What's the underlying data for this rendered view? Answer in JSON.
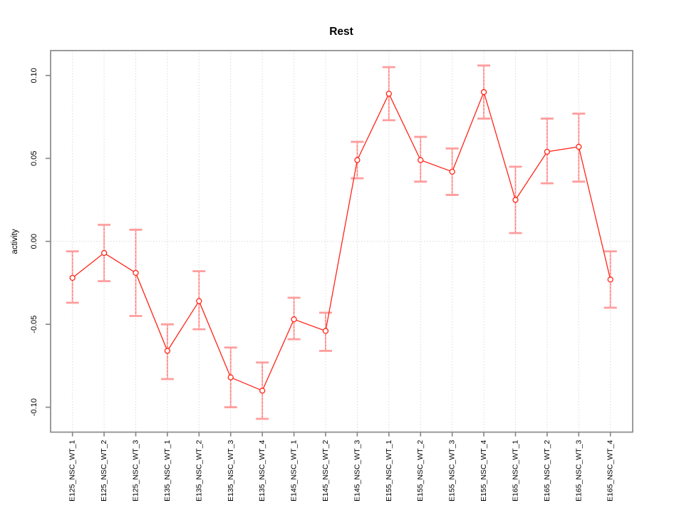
{
  "chart_data": {
    "type": "line",
    "title": "Rest",
    "xlabel": "",
    "ylabel": "activity",
    "legend": "none",
    "marker": "open-circle",
    "error_bars": true,
    "categories": [
      "E125_NSC_WT_1",
      "E125_NSC_WT_2",
      "E125_NSC_WT_3",
      "E135_NSC_WT_1",
      "E135_NSC_WT_2",
      "E135_NSC_WT_3",
      "E135_NSC_WT_4",
      "E145_NSC_WT_1",
      "E145_NSC_WT_2",
      "E145_NSC_WT_3",
      "E155_NSC_WT_1",
      "E155_NSC_WT_2",
      "E155_NSC_WT_3",
      "E155_NSC_WT_4",
      "E165_NSC_WT_1",
      "E165_NSC_WT_2",
      "E165_NSC_WT_3",
      "E165_NSC_WT_4"
    ],
    "series": [
      {
        "name": "activity",
        "values": [
          -0.022,
          -0.007,
          -0.019,
          -0.066,
          -0.036,
          -0.082,
          -0.09,
          -0.047,
          -0.054,
          0.049,
          0.089,
          0.049,
          0.042,
          0.09,
          0.025,
          0.054,
          0.057,
          -0.023
        ],
        "upper": [
          -0.006,
          0.01,
          0.007,
          -0.05,
          -0.018,
          -0.064,
          -0.073,
          -0.034,
          -0.043,
          0.06,
          0.105,
          0.063,
          0.056,
          0.106,
          0.045,
          0.074,
          0.077,
          -0.006
        ],
        "lower": [
          -0.037,
          -0.024,
          -0.045,
          -0.083,
          -0.053,
          -0.1,
          -0.107,
          -0.059,
          -0.066,
          0.038,
          0.073,
          0.036,
          0.028,
          0.074,
          0.005,
          0.035,
          0.036,
          -0.04
        ]
      }
    ],
    "ylim": [
      -0.115,
      0.115
    ],
    "ytick_values": [
      0.1,
      0.05,
      0.0,
      -0.05,
      -0.1
    ],
    "ytick_labels": [
      "0.10",
      "0.05",
      "0.00",
      "-0.05",
      "-0.10"
    ],
    "grid": {
      "vertical_dotted_per_category": true,
      "horizontal_dotted_at_zero": true,
      "other_horizontal": false
    },
    "colors": {
      "line": "#ff2619",
      "marker_stroke": "#ff2619",
      "marker_fill": "#ffffff",
      "error_cap": "#ff9e9e",
      "error_stem": "#ffb1b1",
      "error_stem_dash": "#fb655c",
      "grid": "#d9d9d9",
      "frame": "#8a8a8a",
      "tick": "#8a8a8a",
      "text": "#000000",
      "background": "#ffffff"
    }
  }
}
